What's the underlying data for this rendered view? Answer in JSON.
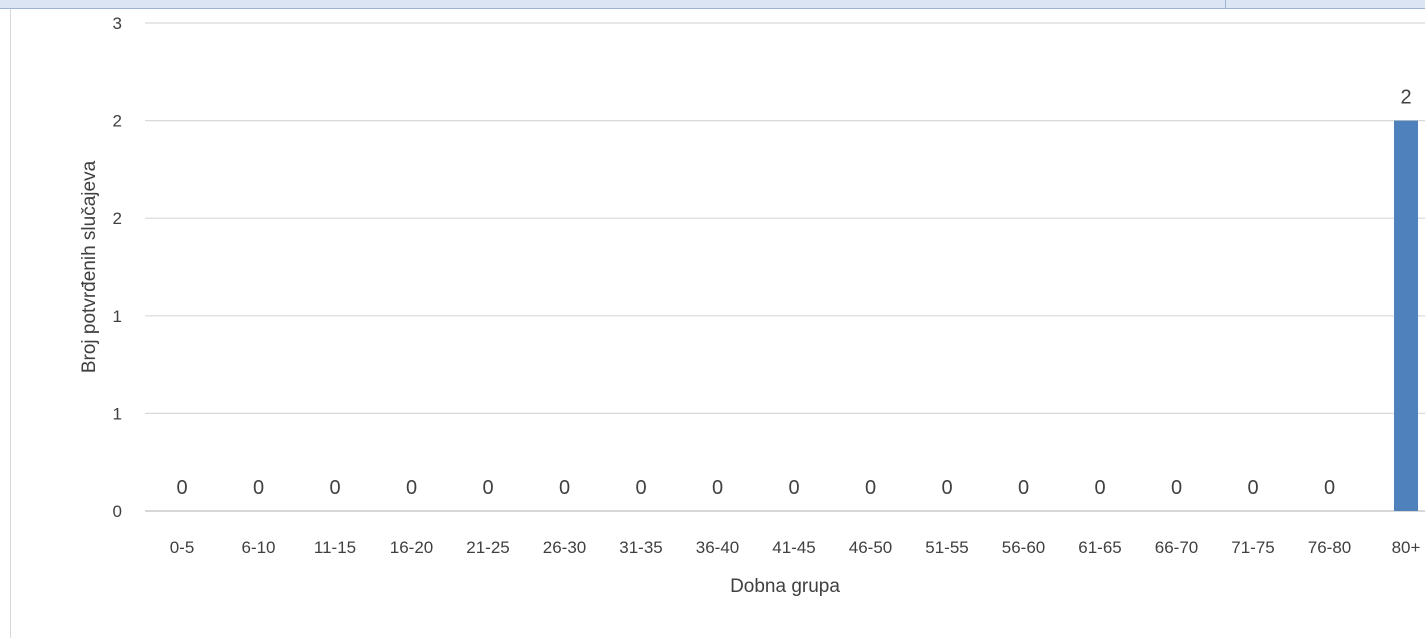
{
  "chart_data": {
    "type": "bar",
    "title": "",
    "xlabel": "Dobna grupa",
    "ylabel": "Broj potvrđenih slučajeva",
    "categories": [
      "0-5",
      "6-10",
      "11-15",
      "16-20",
      "21-25",
      "26-30",
      "31-35",
      "36-40",
      "41-45",
      "46-50",
      "51-55",
      "56-60",
      "61-65",
      "66-70",
      "71-75",
      "76-80",
      "80+"
    ],
    "values": [
      0,
      0,
      0,
      0,
      0,
      0,
      0,
      0,
      0,
      0,
      0,
      0,
      0,
      0,
      0,
      0,
      2
    ],
    "ylim": [
      0,
      2.5
    ],
    "y_ticks": [
      0,
      0.5,
      1,
      1.5,
      2,
      2.5
    ],
    "y_tick_labels": [
      "0",
      "1",
      "1",
      "2",
      "2",
      "3"
    ],
    "grid": true,
    "legend": "none",
    "colors": {
      "bar": "#4f81bd",
      "grid": "#d9d9d9",
      "text": "#404040"
    }
  }
}
